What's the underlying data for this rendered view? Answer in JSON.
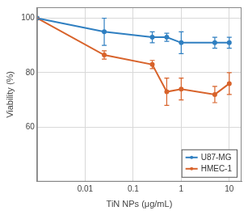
{
  "chart_data": {
    "type": "line",
    "x_label": "TiN NPs (μg/mL)",
    "y_label": "Viability (%)",
    "x": [
      0.001,
      0.025,
      0.25,
      0.5,
      1,
      5,
      10
    ],
    "series": [
      {
        "name": "U87-MG",
        "color": "#2f7fc1",
        "values": [
          100,
          95,
          93,
          93,
          91,
          91,
          91
        ],
        "errors": [
          0,
          5,
          2,
          1.5,
          4,
          2,
          2
        ]
      },
      {
        "name": "HMEC-1",
        "color": "#d8632b",
        "values": [
          100,
          86.5,
          83,
          73,
          74,
          72,
          76
        ],
        "errors": [
          0,
          1.5,
          1.5,
          5,
          4,
          3,
          4
        ]
      }
    ],
    "log": "x",
    "xlim": [
      0.001,
      18
    ],
    "xticks": [
      0.01,
      0.1,
      1,
      10
    ],
    "ylim": [
      40,
      104
    ],
    "yticks": [
      60,
      80,
      100
    ],
    "grid": true,
    "legend": "lower right",
    "marker": "circle"
  }
}
